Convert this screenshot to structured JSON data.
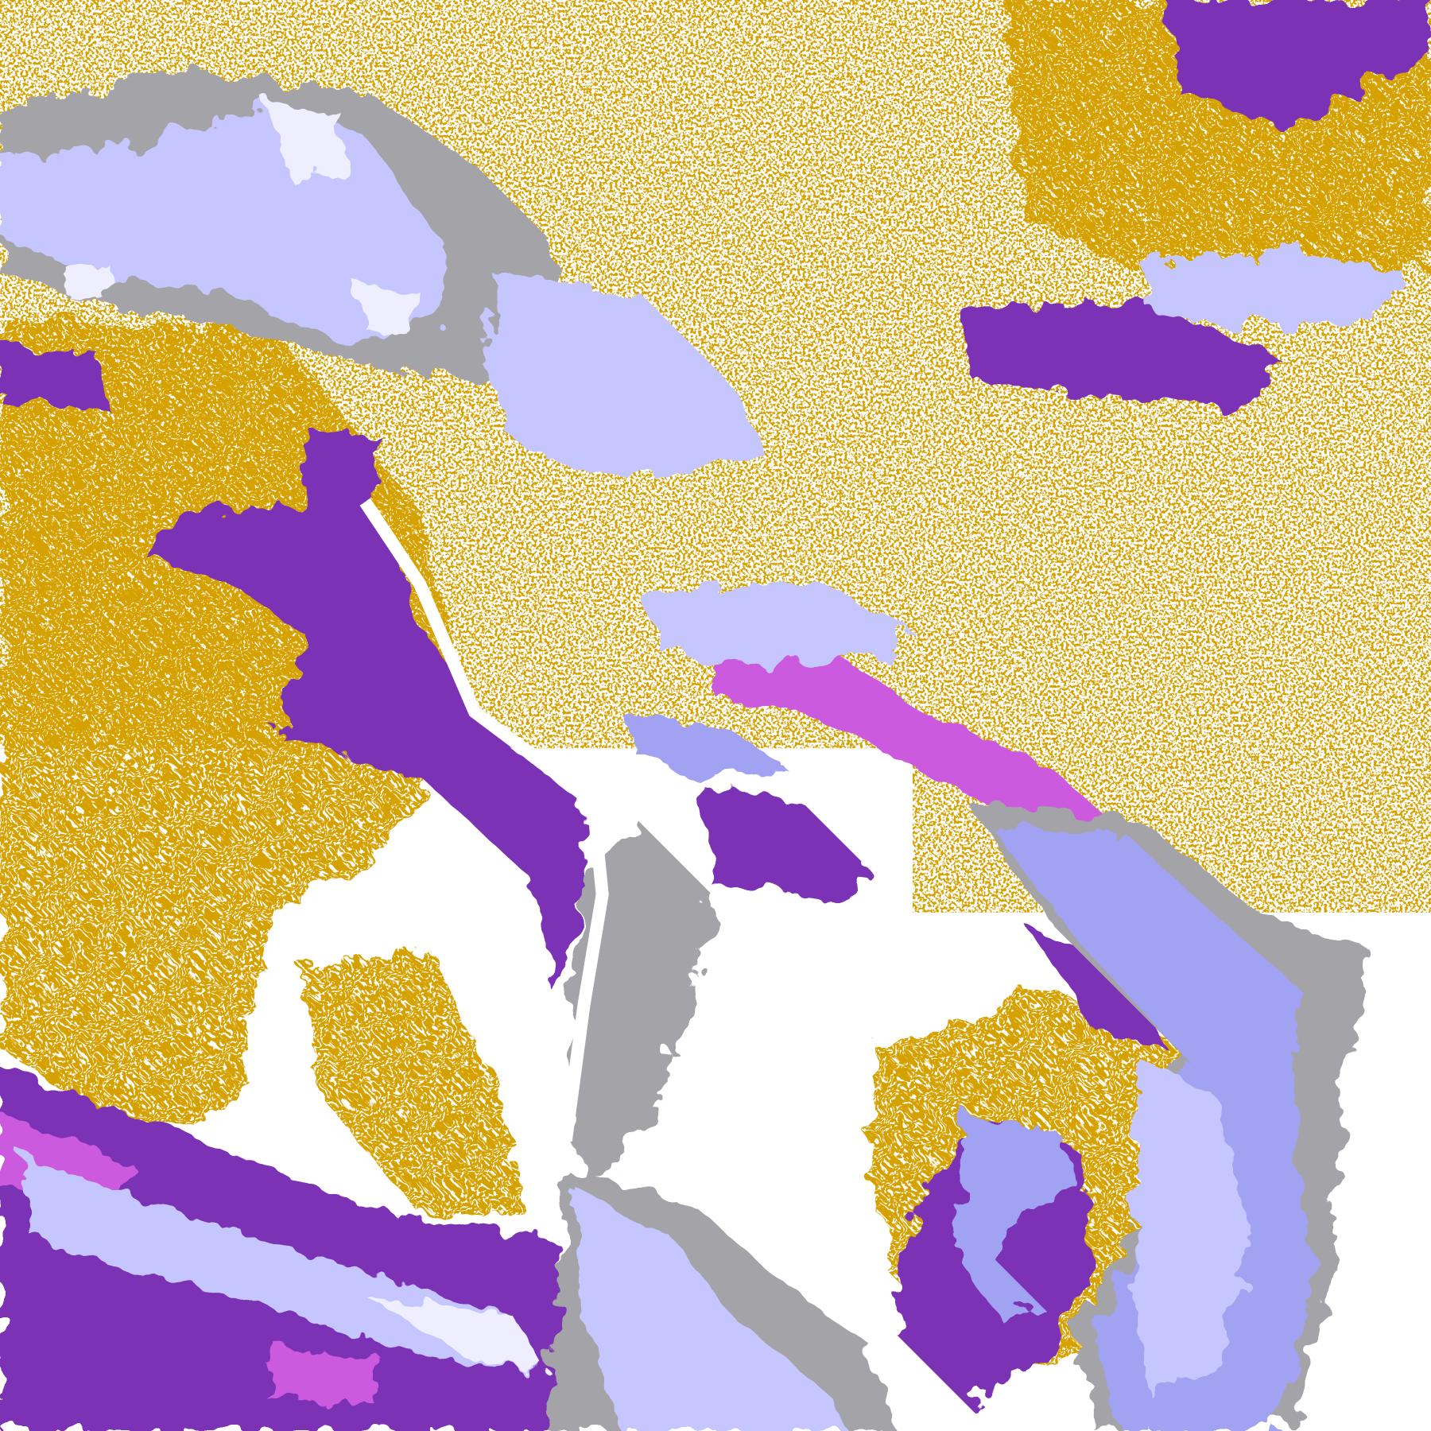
{
  "image": {
    "kind": "satellite cloud-classification composite",
    "colors": {
      "background": "#ffffff",
      "gold": "#d4a106",
      "purple": "#7b30b4",
      "magenta": "#cc5ade",
      "lavender": "#c6c6ff",
      "periwinkle": "#a2a2f2",
      "pale": "#eeeeff",
      "gray": "#a4a4a8"
    }
  }
}
